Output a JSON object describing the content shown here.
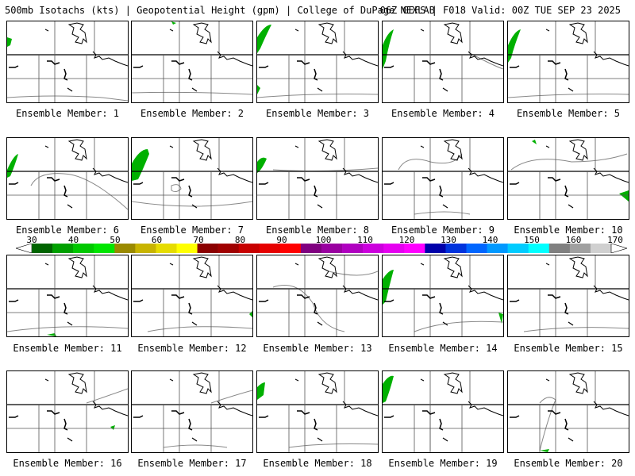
{
  "header": {
    "title": "500mb Isotachs (kts) | Geopotential Height (gpm) | College of DuPage NEXLAB",
    "run_info": "06Z GEFS | F018 Valid: 00Z TUE SEP 23 2025"
  },
  "colorbar": {
    "labels": [
      "30",
      "40",
      "50",
      "60",
      "70",
      "80",
      "90",
      "100",
      "110",
      "120",
      "130",
      "140",
      "150",
      "160",
      "170"
    ],
    "colors": [
      "#006400",
      "#00a000",
      "#00c800",
      "#00e600",
      "#9a8a00",
      "#c8b400",
      "#e6dc00",
      "#ffff00",
      "#8b0000",
      "#a00000",
      "#c80000",
      "#e60000",
      "#ff0000",
      "#800080",
      "#9900a0",
      "#b000c0",
      "#cc00dd",
      "#e600f0",
      "#ff00ff",
      "#0000aa",
      "#0033dd",
      "#0066ff",
      "#0099ff",
      "#00ccff",
      "#00ffff",
      "#808080",
      "#a0a0a0",
      "#d0d0d0"
    ]
  },
  "panels": [
    {
      "label": "Ensemble Member: 1"
    },
    {
      "label": "Ensemble Member: 2"
    },
    {
      "label": "Ensemble Member: 3"
    },
    {
      "label": "Ensemble Member: 4"
    },
    {
      "label": "Ensemble Member: 5"
    },
    {
      "label": "Ensemble Member: 6"
    },
    {
      "label": "Ensemble Member: 7"
    },
    {
      "label": "Ensemble Member: 8"
    },
    {
      "label": "Ensemble Member: 9"
    },
    {
      "label": "Ensemble Member: 10"
    },
    {
      "label": "Ensemble Member: 11"
    },
    {
      "label": "Ensemble Member: 12"
    },
    {
      "label": "Ensemble Member: 13"
    },
    {
      "label": "Ensemble Member: 14"
    },
    {
      "label": "Ensemble Member: 15"
    },
    {
      "label": "Ensemble Member: 16"
    },
    {
      "label": "Ensemble Member: 17"
    },
    {
      "label": "Ensemble Member: 18"
    },
    {
      "label": "Ensemble Member: 19"
    },
    {
      "label": "Ensemble Member: 20"
    }
  ]
}
